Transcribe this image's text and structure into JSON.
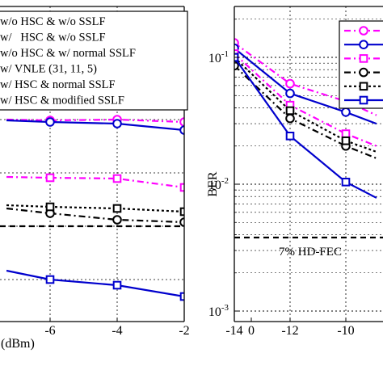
{
  "chart_data": [
    {
      "type": "line",
      "panel": "left",
      "xlabel": "(dBm)",
      "ylabel": "",
      "x_ticks": [
        "-6",
        "-4",
        "-2",
        "0"
      ],
      "xlim": [
        -7.3,
        0
      ],
      "grid": true,
      "legend_placement": "top-left",
      "series": [
        {
          "name": "w/o HSC & w/o SSLF",
          "color": "#ff00ff",
          "dash": "8 4 2 4",
          "marker": "circle",
          "x": [
            -7.3,
            -6,
            -4,
            -2,
            0
          ],
          "y": [
            148,
            149,
            148,
            151,
            165
          ]
        },
        {
          "name": "w/   HSC & w/o SSLF",
          "color": "#0000cd",
          "dash": "",
          "marker": "circle",
          "x": [
            -7.3,
            -6,
            -4,
            -2,
            0
          ],
          "y": [
            149,
            151,
            153,
            161,
            176
          ]
        },
        {
          "name": "w/o HSC & w/ normal SSLF",
          "color": "#ff00ff",
          "dash": "8 4 2 4",
          "marker": "square",
          "x": [
            -7.3,
            -6,
            -4,
            -2,
            0
          ],
          "y": [
            219,
            220,
            221,
            232,
            257
          ]
        },
        {
          "name": "w/ VNLE (31, 11, 5)",
          "color": "#000000",
          "dash": "8 4 2 4",
          "marker": "circle",
          "x": [
            -7.3,
            -6,
            -4,
            -2,
            0
          ],
          "y": [
            258,
            264,
            272,
            275,
            296
          ]
        },
        {
          "name": "w/ HSC & normal SSLF",
          "color": "#000000",
          "dash": "3 3",
          "marker": "square",
          "x": [
            -7.3,
            -6,
            -4,
            -2,
            0
          ],
          "y": [
            254,
            256,
            258,
            262,
            286
          ]
        },
        {
          "name": "w/ HSC & modified SSLF",
          "color": "#0000cd",
          "dash": "",
          "marker": "square",
          "x": [
            -7.3,
            -6,
            -4,
            -2,
            0
          ],
          "y": [
            335,
            346,
            353,
            367,
            365
          ]
        }
      ],
      "threshold_y": 280
    },
    {
      "type": "line",
      "panel": "right",
      "xlabel": "",
      "ylabel": "BER",
      "x_ticks": [
        "-14",
        "-12",
        "-10"
      ],
      "xlim": [
        -14,
        -8.9
      ],
      "y_scale": "log",
      "ylim": [
        0.001,
        0.2
      ],
      "y_ticks": [
        {
          "value": 0.1,
          "base": "10",
          "exp": "-1"
        },
        {
          "value": 0.01,
          "base": "10",
          "exp": "-2"
        },
        {
          "value": 0.001,
          "base": "10",
          "exp": "-3"
        }
      ],
      "grid": true,
      "series": [
        {
          "color": "#ff00ff",
          "dash": "8 4 2 4",
          "marker": "circle",
          "x": [
            -14,
            -12,
            -10,
            -8.9
          ],
          "y": [
            0.13,
            0.062,
            0.045,
            0.035
          ]
        },
        {
          "color": "#0000cd",
          "dash": "",
          "marker": "circle",
          "x": [
            -14,
            -12,
            -10,
            -8.9
          ],
          "y": [
            0.118,
            0.052,
            0.037,
            0.03
          ]
        },
        {
          "color": "#ff00ff",
          "dash": "8 4 2 4",
          "marker": "square",
          "x": [
            -14,
            -12,
            -10,
            -8.9
          ],
          "y": [
            0.107,
            0.042,
            0.025,
            0.02
          ]
        },
        {
          "color": "#000000",
          "dash": "8 4 2 4",
          "marker": "circle",
          "x": [
            -14,
            -12,
            -10,
            -8.9
          ],
          "y": [
            0.086,
            0.033,
            0.02,
            0.016
          ]
        },
        {
          "color": "#000000",
          "dash": "3 3",
          "marker": "square",
          "x": [
            -14,
            -12,
            -10,
            -8.9
          ],
          "y": [
            0.1,
            0.038,
            0.022,
            0.018
          ]
        },
        {
          "color": "#0000cd",
          "dash": "",
          "marker": "square",
          "x": [
            -14,
            -12,
            -10,
            -8.9
          ],
          "y": [
            0.1,
            0.024,
            0.0104,
            0.0078
          ]
        }
      ],
      "threshold": {
        "y": 0.0038,
        "label": "7% HD-FEC"
      }
    }
  ]
}
